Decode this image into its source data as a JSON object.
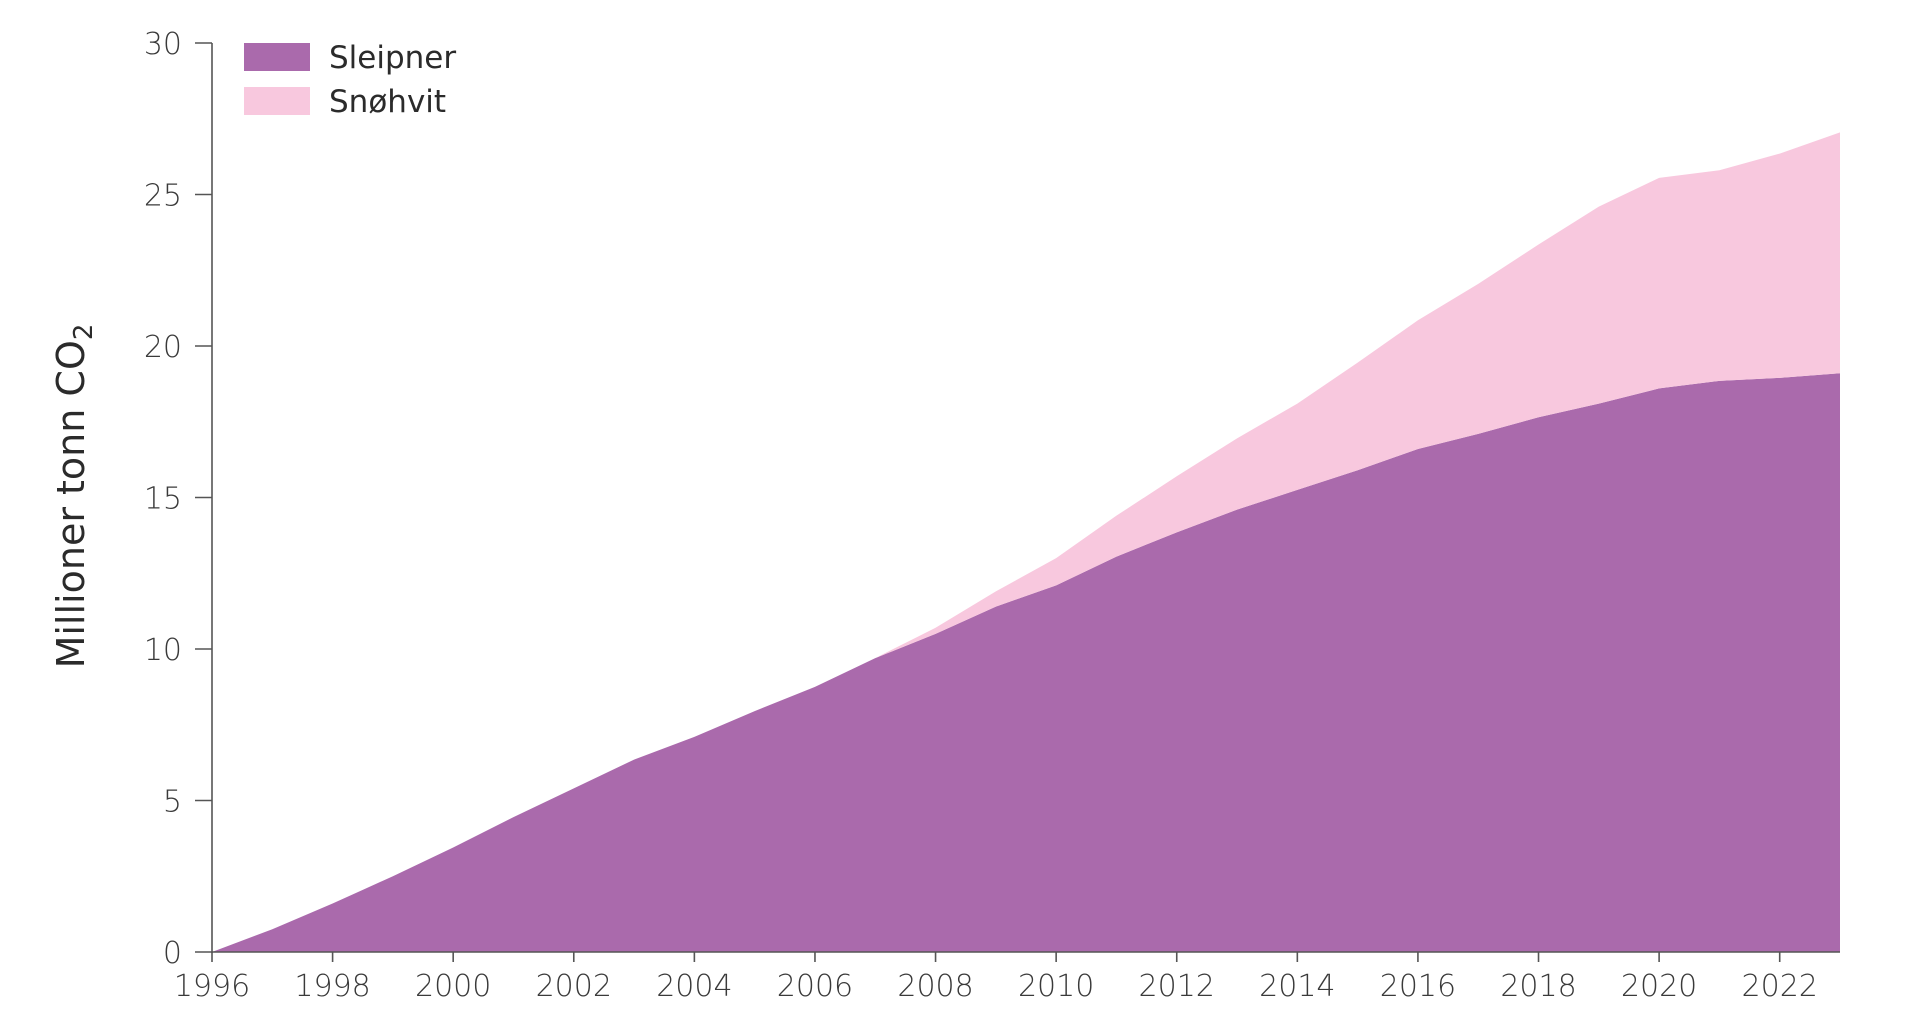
{
  "chart_data": {
    "type": "area",
    "stacked": true,
    "title": "",
    "xlabel": "",
    "ylabel": "Millioner tonn CO",
    "ylabel_subscript": "2",
    "x": [
      1996,
      1997,
      1998,
      1999,
      2000,
      2001,
      2002,
      2003,
      2004,
      2005,
      2006,
      2007,
      2008,
      2009,
      2010,
      2011,
      2012,
      2013,
      2014,
      2015,
      2016,
      2017,
      2018,
      2019,
      2020,
      2021,
      2022,
      2023
    ],
    "xlim": [
      1996,
      2023
    ],
    "ylim": [
      0,
      30
    ],
    "x_ticks": [
      1996,
      1998,
      2000,
      2002,
      2004,
      2006,
      2008,
      2010,
      2012,
      2014,
      2016,
      2018,
      2020,
      2022
    ],
    "y_ticks": [
      0,
      5,
      10,
      15,
      20,
      25,
      30
    ],
    "grid": false,
    "legend_position": "top-left",
    "series": [
      {
        "name": "Sleipner",
        "color": "#aa6aac",
        "values": [
          0,
          0.75,
          1.6,
          2.5,
          3.45,
          4.45,
          5.4,
          6.35,
          7.1,
          7.95,
          8.75,
          9.7,
          10.5,
          11.4,
          12.1,
          13.05,
          13.85,
          14.6,
          15.25,
          15.9,
          16.6,
          17.1,
          17.65,
          18.1,
          18.6,
          18.85,
          18.95,
          19.1
        ]
      },
      {
        "name": "Snøhvit",
        "color": "#f8c8de",
        "values": [
          0,
          0,
          0,
          0,
          0,
          0,
          0,
          0,
          0,
          0,
          0,
          0,
          0.2,
          0.5,
          0.9,
          1.35,
          1.85,
          2.35,
          2.85,
          3.55,
          4.25,
          4.95,
          5.7,
          6.5,
          6.95,
          6.95,
          7.4,
          7.95
        ]
      }
    ]
  }
}
